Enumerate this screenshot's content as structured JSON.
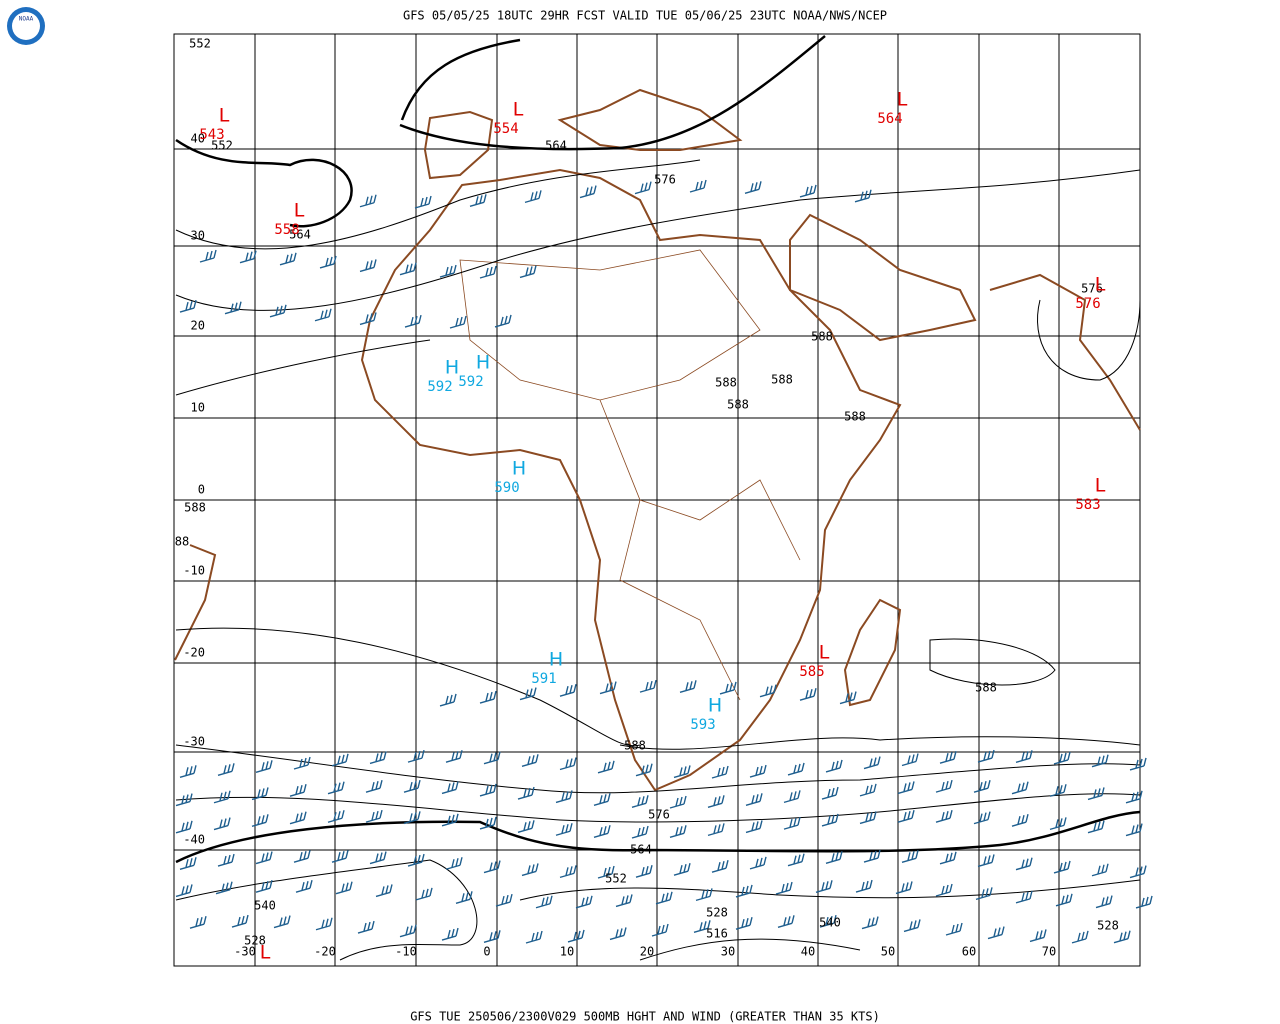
{
  "header": {
    "title": "GFS 05/05/25 18UTC 29HR FCST VALID TUE 05/06/25 23UTC NOAA/NWS/NCEP",
    "logo": "NOAA"
  },
  "footer": {
    "caption": "GFS TUE 250506/2300V029 500MB HGHT AND WIND (GREATER THAN 35 KTS)"
  },
  "map": {
    "lat_labels": [
      "40",
      "30",
      "20",
      "10",
      "0",
      "-10",
      "-20",
      "-30",
      "-40"
    ],
    "lon_labels": [
      "-30",
      "-20",
      "-10",
      "0",
      "10",
      "20",
      "30",
      "40",
      "50",
      "60",
      "70"
    ],
    "contour_labels": [
      "552",
      "552",
      "564",
      "564",
      "576",
      "588",
      "588",
      "588",
      "588",
      "588",
      "576",
      "588",
      "88",
      "588",
      "588",
      "576",
      "564",
      "552",
      "540",
      "528",
      "528",
      "516",
      "540",
      "528"
    ],
    "systems": [
      {
        "letter": "L",
        "value": "543",
        "color": "#e00000"
      },
      {
        "letter": "L",
        "value": "554",
        "color": "#e00000"
      },
      {
        "letter": "L",
        "value": "564",
        "color": "#e00000"
      },
      {
        "letter": "L",
        "value": "558",
        "color": "#e00000"
      },
      {
        "letter": "L",
        "value": "576",
        "color": "#e00000"
      },
      {
        "letter": "L",
        "value": "583",
        "color": "#e00000"
      },
      {
        "letter": "L",
        "value": "585",
        "color": "#e00000"
      },
      {
        "letter": "L",
        "color": "#e00000"
      },
      {
        "letter": "H",
        "value": "592",
        "color": "#10a8e0"
      },
      {
        "letter": "H",
        "value": "592",
        "color": "#10a8e0"
      },
      {
        "letter": "H",
        "value": "590",
        "color": "#10a8e0"
      },
      {
        "letter": "H",
        "value": "591",
        "color": "#10a8e0"
      },
      {
        "letter": "H",
        "value": "593",
        "color": "#10a8e0"
      }
    ]
  }
}
